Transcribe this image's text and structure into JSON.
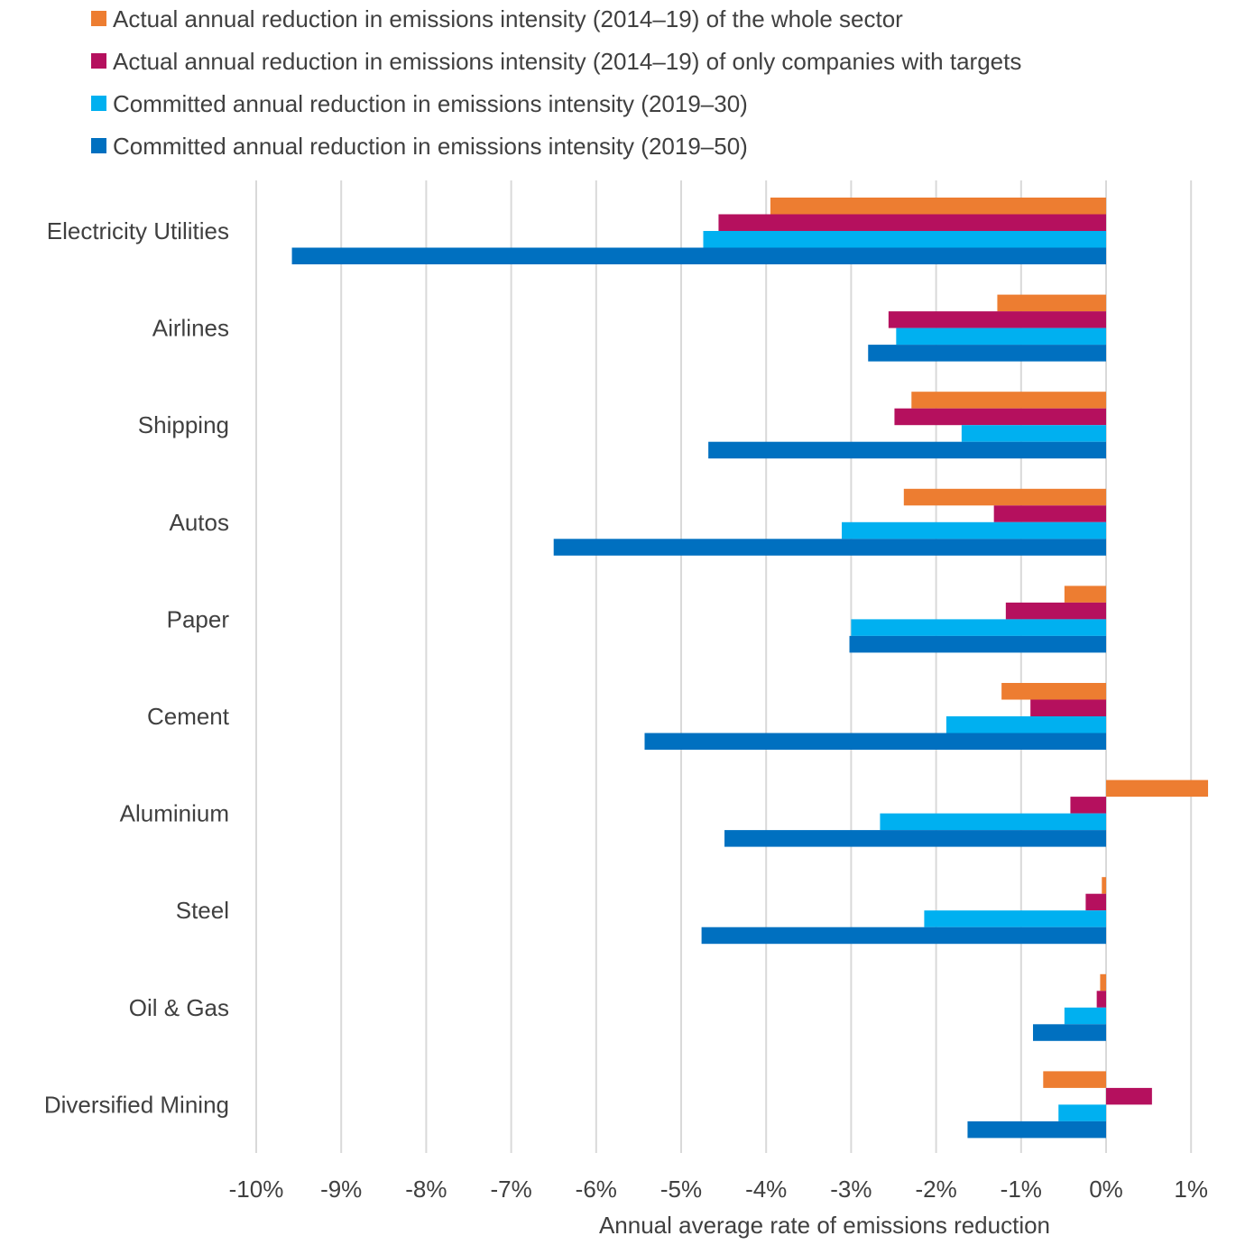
{
  "chart_data": {
    "type": "bar",
    "orientation": "horizontal",
    "title": "",
    "xlabel": "Annual average rate of emissions reduction",
    "ylabel": "",
    "xlim": [
      -10,
      1
    ],
    "x_ticks": [
      -10,
      -9,
      -8,
      -7,
      -6,
      -5,
      -4,
      -3,
      -2,
      -1,
      0,
      1
    ],
    "x_tick_labels": [
      "-10%",
      "-9%",
      "-8%",
      "-7%",
      "-6%",
      "-5%",
      "-4%",
      "-3%",
      "-2%",
      "-1%",
      "0%",
      "1%"
    ],
    "grid": true,
    "legend_position": "top",
    "categories": [
      "Electricity Utilities",
      "Airlines",
      "Shipping",
      "Autos",
      "Paper",
      "Cement",
      "Aluminium",
      "Steel",
      "Oil & Gas",
      "Diversified Mining"
    ],
    "series": [
      {
        "name": "Actual annual reduction in emissions intensity (2014–19) of the whole sector",
        "color": "#ED7D31",
        "values": [
          -3.95,
          -1.28,
          -2.29,
          -2.38,
          -0.49,
          -1.23,
          1.2,
          -0.05,
          -0.07,
          -0.74
        ]
      },
      {
        "name": "Actual annual reduction in emissions intensity (2014–19) of only companies with targets",
        "color": "#B5105E",
        "values": [
          -4.56,
          -2.56,
          -2.49,
          -1.32,
          -1.18,
          -0.89,
          -0.42,
          -0.24,
          -0.11,
          0.54
        ]
      },
      {
        "name": "Committed annual reduction in emissions intensity (2019–30)",
        "color": "#00B0F0",
        "values": [
          -4.74,
          -2.47,
          -1.7,
          -3.11,
          -3.0,
          -1.88,
          -2.66,
          -2.14,
          -0.49,
          -0.56
        ]
      },
      {
        "name": "Committed annual reduction in emissions intensity (2019–50)",
        "color": "#0070C0",
        "values": [
          -9.58,
          -2.8,
          -4.68,
          -6.5,
          -3.02,
          -5.43,
          -4.49,
          -4.76,
          -0.86,
          -1.63
        ]
      }
    ]
  }
}
